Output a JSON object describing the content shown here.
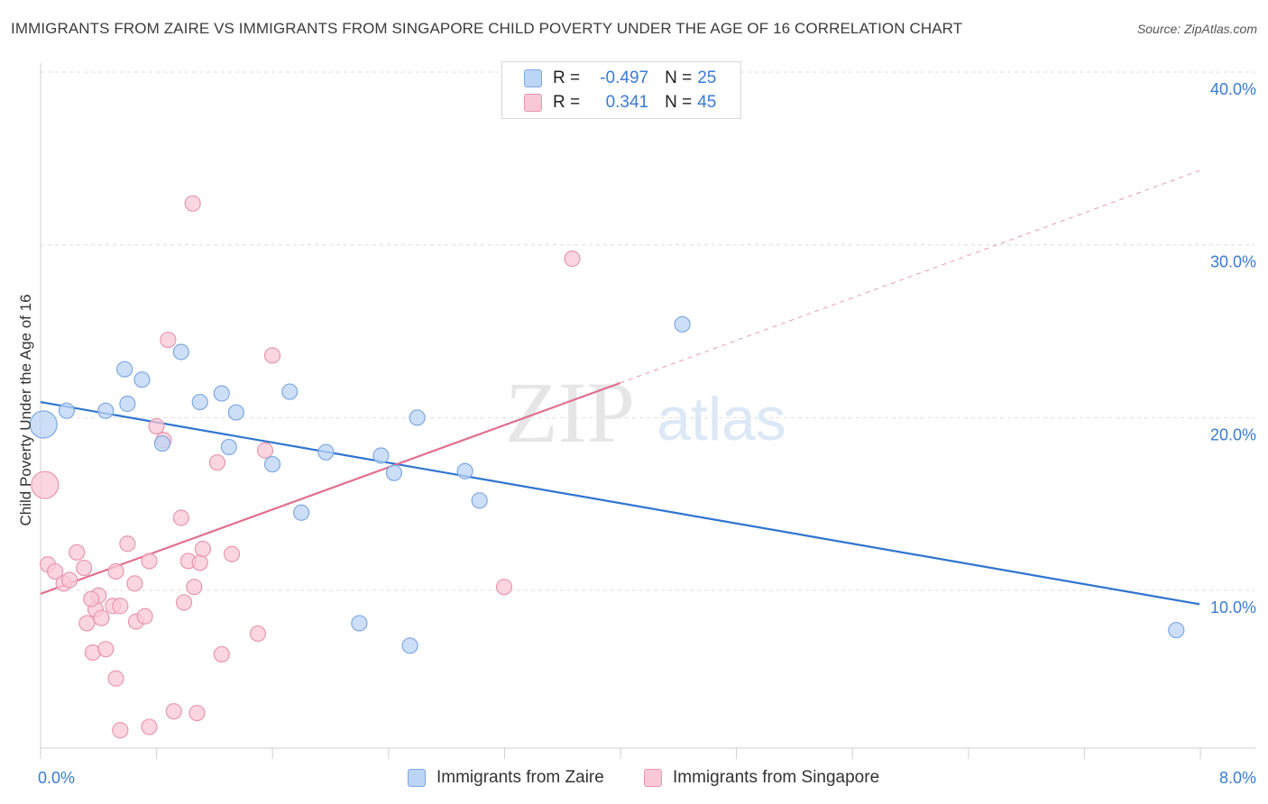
{
  "title": "IMMIGRANTS FROM ZAIRE VS IMMIGRANTS FROM SINGAPORE CHILD POVERTY UNDER THE AGE OF 16 CORRELATION CHART",
  "source": "Source: ZipAtlas.com",
  "watermark": {
    "zip": "ZIP",
    "atlas": "atlas"
  },
  "legend": {
    "r_label": "R =",
    "n_label": "N =",
    "series": [
      {
        "name": "Immigrants from Zaire",
        "r": "-0.497",
        "n": "25"
      },
      {
        "name": "Immigrants from Singapore",
        "r": "0.341",
        "n": "45"
      }
    ]
  },
  "colors": {
    "zaire_fill": "#bcd4f5",
    "zaire_stroke": "#7ea8e0",
    "zaire_line": "#2f74d0",
    "singapore_fill": "#f9c8d6",
    "singapore_stroke": "#e896b0",
    "singapore_line": "#e0708f",
    "grid": "#dedede",
    "tick_text": "#3a7bd5"
  },
  "chart_data": {
    "type": "scatter",
    "title": "IMMIGRANTS FROM ZAIRE VS IMMIGRANTS FROM SINGAPORE CHILD POVERTY UNDER THE AGE OF 16 CORRELATION CHART",
    "xlabel": "",
    "ylabel": "Child Poverty Under the Age of 16",
    "xlim": [
      0,
      8
    ],
    "ylim": [
      0,
      42
    ],
    "x_tick_labels": [
      "0.0%",
      "8.0%"
    ],
    "y_ticks": [
      10,
      20,
      30,
      40
    ],
    "y_tick_labels": [
      "10.0%",
      "20.0%",
      "30.0%",
      "40.0%"
    ],
    "grid": true,
    "series": [
      {
        "name": "Immigrants from Zaire",
        "points": [
          [
            0.02,
            19.6,
            "large"
          ],
          [
            0.18,
            20.4
          ],
          [
            0.45,
            20.4
          ],
          [
            0.6,
            20.8
          ],
          [
            0.58,
            22.8
          ],
          [
            0.7,
            22.2
          ],
          [
            0.97,
            23.8
          ],
          [
            0.84,
            18.5
          ],
          [
            1.1,
            20.9
          ],
          [
            1.25,
            21.4
          ],
          [
            1.35,
            20.3
          ],
          [
            1.3,
            18.3
          ],
          [
            1.6,
            17.3
          ],
          [
            1.72,
            21.5
          ],
          [
            1.8,
            14.5
          ],
          [
            1.97,
            18.0
          ],
          [
            2.35,
            17.8
          ],
          [
            2.44,
            16.8
          ],
          [
            2.6,
            20.0
          ],
          [
            2.93,
            16.9
          ],
          [
            3.03,
            15.2
          ],
          [
            2.2,
            8.1
          ],
          [
            2.55,
            6.8
          ],
          [
            4.43,
            25.4
          ],
          [
            7.84,
            7.7
          ]
        ],
        "trend": {
          "x": [
            0.0,
            8.0
          ],
          "y": [
            20.9,
            9.2
          ]
        }
      },
      {
        "name": "Immigrants from Singapore",
        "points": [
          [
            0.03,
            16.1,
            "large"
          ],
          [
            0.05,
            11.5
          ],
          [
            0.1,
            11.1
          ],
          [
            0.16,
            10.4
          ],
          [
            0.2,
            10.6
          ],
          [
            0.25,
            12.2
          ],
          [
            0.3,
            11.3
          ],
          [
            0.32,
            8.1
          ],
          [
            0.38,
            8.9
          ],
          [
            0.4,
            9.7
          ],
          [
            0.42,
            8.4
          ],
          [
            0.36,
            6.4
          ],
          [
            0.45,
            6.6
          ],
          [
            0.5,
            9.1
          ],
          [
            0.55,
            9.1
          ],
          [
            0.52,
            4.9
          ],
          [
            0.6,
            12.7
          ],
          [
            0.65,
            10.4
          ],
          [
            0.66,
            8.2
          ],
          [
            0.72,
            8.5
          ],
          [
            0.75,
            11.7
          ],
          [
            0.8,
            19.5
          ],
          [
            0.85,
            18.7
          ],
          [
            0.88,
            24.5
          ],
          [
            0.97,
            14.2
          ],
          [
            0.99,
            9.3
          ],
          [
            1.02,
            11.7
          ],
          [
            1.06,
            10.2
          ],
          [
            1.1,
            11.6
          ],
          [
            1.12,
            12.4
          ],
          [
            1.22,
            17.4
          ],
          [
            1.32,
            12.1
          ],
          [
            1.5,
            7.5
          ],
          [
            1.55,
            18.1
          ],
          [
            1.6,
            23.6
          ],
          [
            0.75,
            2.1
          ],
          [
            0.92,
            3.0
          ],
          [
            1.08,
            2.9
          ],
          [
            1.25,
            6.3
          ],
          [
            0.55,
            1.9
          ],
          [
            1.05,
            32.4
          ],
          [
            3.2,
            10.2
          ],
          [
            3.67,
            29.2
          ],
          [
            0.52,
            11.1
          ],
          [
            0.35,
            9.5
          ]
        ],
        "trend": {
          "x": [
            0.0,
            4.0
          ],
          "y": [
            9.8,
            22.0
          ]
        },
        "trend_extension": {
          "x": [
            4.0,
            8.0
          ],
          "y": [
            22.0,
            34.3
          ]
        }
      }
    ]
  }
}
